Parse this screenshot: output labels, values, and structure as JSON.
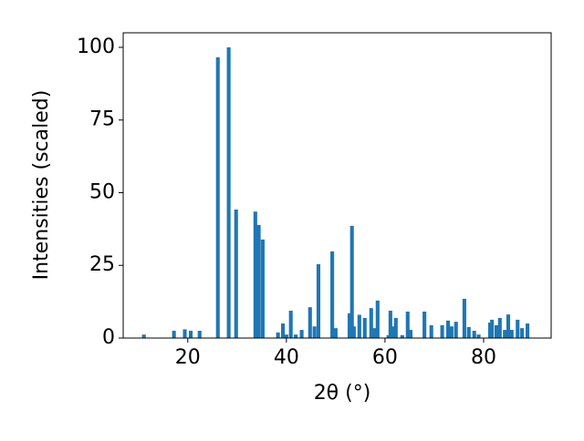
{
  "chart_data": {
    "type": "bar",
    "xlabel": "2θ (°)",
    "ylabel": "Intensities (scaled)",
    "x": [
      11.1,
      17.2,
      19.4,
      20.6,
      22.4,
      26.1,
      28.3,
      29.8,
      33.7,
      34.4,
      35.2,
      38.3,
      39.3,
      40.0,
      40.9,
      41.9,
      43.1,
      44.8,
      45.7,
      46.5,
      49.3,
      50.0,
      52.8,
      53.3,
      53.7,
      54.8,
      55.9,
      57.2,
      57.8,
      58.5,
      60.7,
      61.1,
      61.7,
      62.2,
      63.5,
      64.6,
      65.2,
      68.0,
      69.4,
      71.6,
      72.8,
      73.5,
      74.4,
      76.1,
      77.0,
      78.1,
      79.0,
      81.3,
      81.7,
      82.6,
      83.3,
      84.3,
      85.0,
      85.7,
      86.9,
      87.8,
      88.9
    ],
    "values": [
      1.2,
      2.5,
      3,
      2.5,
      2.5,
      96.6,
      100,
      44.2,
      43.5,
      38.9,
      33.9,
      1.9,
      5,
      1.2,
      9.4,
      1.2,
      2.8,
      10.6,
      4,
      25.4,
      29.8,
      3.4,
      8.5,
      38.6,
      4,
      8,
      6.9,
      10.3,
      3.4,
      12.9,
      1,
      9.4,
      4,
      6.9,
      1,
      9.1,
      2.8,
      9.1,
      4.4,
      4.4,
      6,
      4,
      5.6,
      13.5,
      3.8,
      2.5,
      1.2,
      5.3,
      6.3,
      4.4,
      6.9,
      2.8,
      8.1,
      2.8,
      6.3,
      3.4,
      5
    ],
    "color": "#1f77b4",
    "xlim": [
      6.9,
      93.7
    ],
    "xticks": [
      20,
      40,
      60,
      80
    ],
    "ylim": [
      0,
      105
    ],
    "yticks": [
      0,
      25,
      50,
      75,
      100
    ]
  }
}
